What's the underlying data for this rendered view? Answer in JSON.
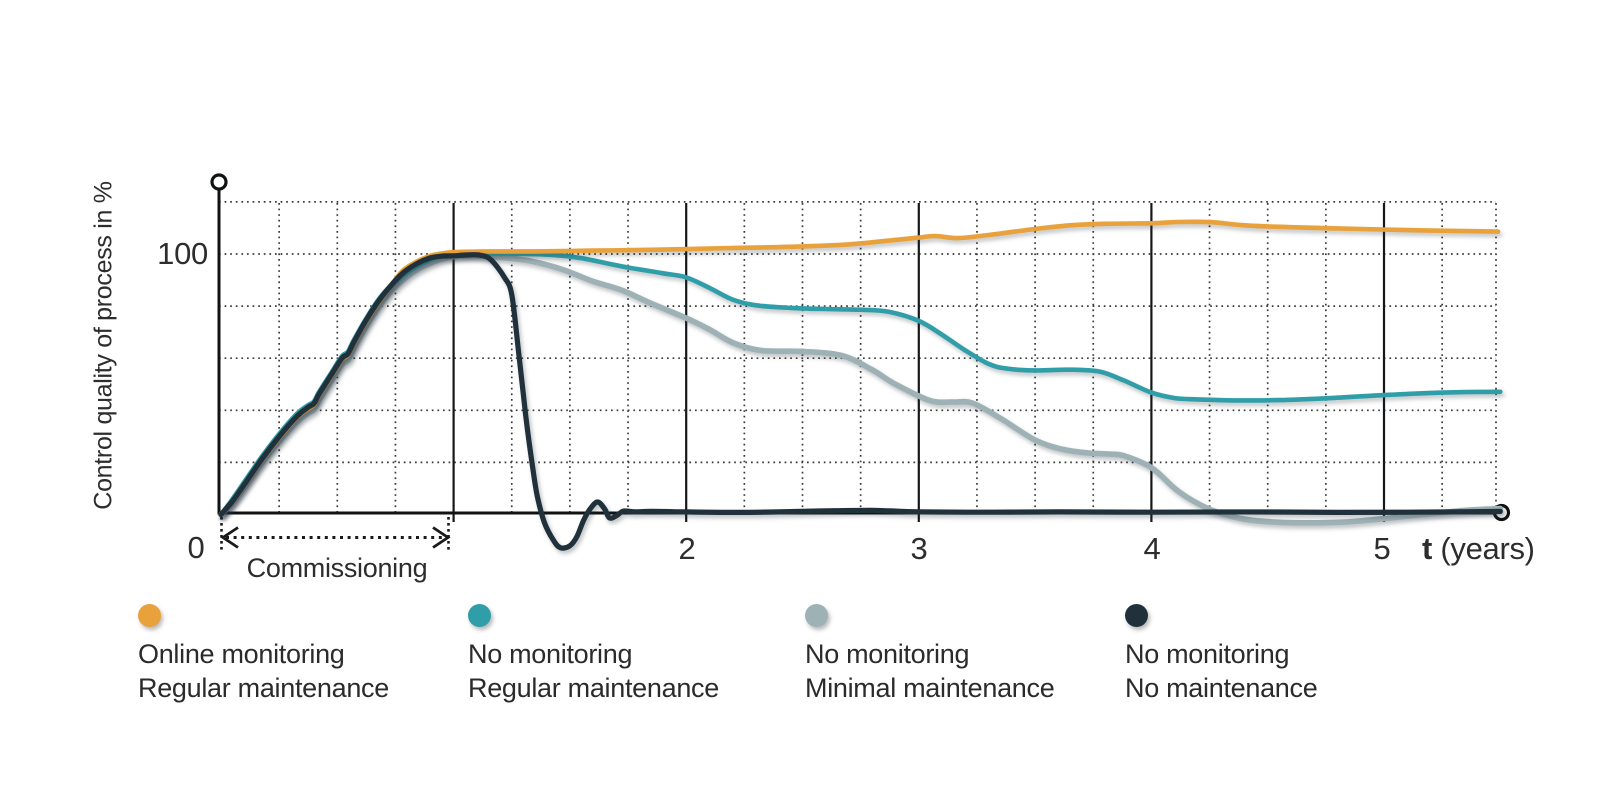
{
  "axes": {
    "y_title": "Control quality of process in %",
    "y_tick_100": "100",
    "x_tick_0": "0",
    "x_tick_2": "2",
    "x_tick_3": "3",
    "x_tick_4": "4",
    "x_tick_5": "5",
    "x_axis_var": "t",
    "x_axis_unit": "(years)"
  },
  "annotation": {
    "commissioning": "Commissioning"
  },
  "colors": {
    "orange": "#E8A13B",
    "teal": "#2F9EA9",
    "gray": "#9EB2B5",
    "dark": "#20313B",
    "axis": "#101214",
    "grid_dots": "#3A3A3A",
    "text": "#2D2D2D"
  },
  "legend": {
    "items": [
      {
        "id": "online-monitoring-regular-maintenance",
        "color": "#E8A13B",
        "line1": "Online monitoring",
        "line2": "Regular maintenance"
      },
      {
        "id": "no-monitoring-regular-maintenance",
        "color": "#2F9EA9",
        "line1": "No monitoring",
        "line2": "Regular maintenance"
      },
      {
        "id": "no-monitoring-minimal-maintenance",
        "color": "#9EB2B5",
        "line1": "No monitoring",
        "line2": "Minimal maintenance"
      },
      {
        "id": "no-monitoring-no-maintenance",
        "color": "#20313B",
        "line1": "No monitoring",
        "line2": "No maintenance"
      }
    ]
  },
  "chart_data": {
    "type": "line",
    "title": "",
    "xlabel": "t (years)",
    "ylabel": "Control quality of process in %",
    "xlim": [
      0,
      5.5
    ],
    "ylim": [
      -15,
      120
    ],
    "y_grid_step": 20,
    "y_grid_max": 120,
    "x_minor_step": 0.25,
    "x_solid_lines": [
      1,
      2,
      3,
      4,
      5
    ],
    "x_labeled_ticks": [
      0,
      2,
      3,
      4,
      5
    ],
    "y_labeled_ticks": [
      100
    ],
    "grid": "dotted",
    "legend_position": "bottom",
    "annotation_range": {
      "label": "Commissioning",
      "from_x": 0,
      "to_x": 0.98
    },
    "series": [
      {
        "id": "no-monitoring-minimal-maintenance",
        "name": "No monitoring / Minimal maintenance",
        "color": "#9EB2B5",
        "width": 5.6,
        "points": [
          [
            0,
            0
          ],
          [
            0.05,
            4.5
          ],
          [
            0.11,
            11.5
          ],
          [
            0.18,
            20.3
          ],
          [
            0.26,
            29
          ],
          [
            0.33,
            35.8
          ],
          [
            0.375,
            38.8
          ],
          [
            0.4,
            40.2
          ],
          [
            0.42,
            43.6
          ],
          [
            0.47,
            50.6
          ],
          [
            0.52,
            57.6
          ],
          [
            0.545,
            59
          ],
          [
            0.57,
            63.6
          ],
          [
            0.62,
            71.5
          ],
          [
            0.67,
            78.5
          ],
          [
            0.72,
            84.6
          ],
          [
            0.78,
            89.8
          ],
          [
            0.84,
            93.8
          ],
          [
            0.9,
            96.4
          ],
          [
            0.95,
            98
          ],
          [
            1,
            99
          ],
          [
            1.08,
            99.3
          ],
          [
            1.2,
            98.7
          ],
          [
            1.33,
            97.3
          ],
          [
            1.47,
            94
          ],
          [
            1.6,
            89.5
          ],
          [
            1.72,
            86.2
          ],
          [
            1.85,
            81
          ],
          [
            2,
            75.4
          ],
          [
            2.1,
            71
          ],
          [
            2.2,
            66
          ],
          [
            2.32,
            63
          ],
          [
            2.5,
            62.6
          ],
          [
            2.67,
            61
          ],
          [
            2.8,
            55.5
          ],
          [
            2.9,
            50
          ],
          [
            3.05,
            43.7
          ],
          [
            3.15,
            43.2
          ],
          [
            3.23,
            42.8
          ],
          [
            3.35,
            37
          ],
          [
            3.5,
            28.6
          ],
          [
            3.62,
            25
          ],
          [
            3.73,
            23.6
          ],
          [
            3.82,
            23.2
          ],
          [
            3.88,
            22.6
          ],
          [
            4,
            18
          ],
          [
            4.1,
            10
          ],
          [
            4.18,
            5.2
          ],
          [
            4.28,
            1
          ],
          [
            4.4,
            -1.8
          ],
          [
            4.55,
            -3
          ],
          [
            4.7,
            -3.2
          ],
          [
            4.85,
            -2.8
          ],
          [
            5,
            -1.6
          ],
          [
            5.2,
            0.3
          ],
          [
            5.35,
            1.6
          ],
          [
            5.5,
            2.3
          ]
        ]
      },
      {
        "id": "no-monitoring-regular-maintenance",
        "name": "No monitoring / Regular maintenance",
        "color": "#2F9EA9",
        "width": 4.6,
        "points": [
          [
            0,
            0
          ],
          [
            0.05,
            6
          ],
          [
            0.11,
            13.8
          ],
          [
            0.18,
            22.8
          ],
          [
            0.26,
            32
          ],
          [
            0.33,
            39
          ],
          [
            0.375,
            42
          ],
          [
            0.4,
            43.4
          ],
          [
            0.42,
            46.8
          ],
          [
            0.47,
            53.8
          ],
          [
            0.52,
            60.8
          ],
          [
            0.545,
            62.4
          ],
          [
            0.57,
            66.8
          ],
          [
            0.62,
            74.6
          ],
          [
            0.67,
            81.6
          ],
          [
            0.72,
            87
          ],
          [
            0.78,
            91.5
          ],
          [
            0.84,
            95.2
          ],
          [
            0.9,
            97.8
          ],
          [
            0.95,
            99.2
          ],
          [
            1,
            99.8
          ],
          [
            1.1,
            100
          ],
          [
            1.25,
            100.1
          ],
          [
            1.42,
            99.7
          ],
          [
            1.55,
            98.4
          ],
          [
            1.72,
            95.3
          ],
          [
            1.9,
            92.6
          ],
          [
            2,
            91
          ],
          [
            2.1,
            87
          ],
          [
            2.2,
            82.5
          ],
          [
            2.3,
            80.3
          ],
          [
            2.45,
            79.3
          ],
          [
            2.6,
            78.9
          ],
          [
            2.75,
            78.6
          ],
          [
            2.87,
            77.8
          ],
          [
            3,
            74.3
          ],
          [
            3.1,
            69
          ],
          [
            3.2,
            63
          ],
          [
            3.3,
            57.8
          ],
          [
            3.38,
            56
          ],
          [
            3.5,
            55.3
          ],
          [
            3.65,
            55.6
          ],
          [
            3.78,
            54.8
          ],
          [
            3.88,
            51.5
          ],
          [
            4,
            46.8
          ],
          [
            4.1,
            44.7
          ],
          [
            4.2,
            44.2
          ],
          [
            4.35,
            43.8
          ],
          [
            4.55,
            43.9
          ],
          [
            4.75,
            44.6
          ],
          [
            4.95,
            45.6
          ],
          [
            5.15,
            46.5
          ],
          [
            5.35,
            47
          ],
          [
            5.5,
            47.1
          ]
        ]
      },
      {
        "id": "online-monitoring-regular-maintenance",
        "name": "Online monitoring / Regular maintenance",
        "color": "#E8A13B",
        "width": 4.6,
        "points": [
          [
            0,
            0
          ],
          [
            0.05,
            5
          ],
          [
            0.11,
            12.5
          ],
          [
            0.18,
            21.5
          ],
          [
            0.26,
            30.5
          ],
          [
            0.33,
            37.5
          ],
          [
            0.375,
            40.5
          ],
          [
            0.4,
            42
          ],
          [
            0.42,
            45.5
          ],
          [
            0.47,
            52.5
          ],
          [
            0.52,
            59.5
          ],
          [
            0.545,
            61
          ],
          [
            0.57,
            65.5
          ],
          [
            0.62,
            73.5
          ],
          [
            0.67,
            80.5
          ],
          [
            0.72,
            86.5
          ],
          [
            0.78,
            93.5
          ],
          [
            0.84,
            97
          ],
          [
            0.9,
            99.3
          ],
          [
            0.95,
            100.2
          ],
          [
            1,
            100.7
          ],
          [
            1.15,
            101
          ],
          [
            1.35,
            101
          ],
          [
            1.6,
            101.3
          ],
          [
            1.85,
            101.6
          ],
          [
            2,
            101.9
          ],
          [
            2.2,
            102.3
          ],
          [
            2.5,
            102.9
          ],
          [
            2.7,
            103.7
          ],
          [
            2.9,
            105.4
          ],
          [
            3,
            106.3
          ],
          [
            3.07,
            106.9
          ],
          [
            3.17,
            106.1
          ],
          [
            3.3,
            107.3
          ],
          [
            3.5,
            109.6
          ],
          [
            3.65,
            111
          ],
          [
            3.8,
            111.6
          ],
          [
            4,
            111.8
          ],
          [
            4.12,
            112.3
          ],
          [
            4.26,
            112.2
          ],
          [
            4.4,
            111
          ],
          [
            4.6,
            110.3
          ],
          [
            4.9,
            109.6
          ],
          [
            5.2,
            109
          ],
          [
            5.49,
            108.6
          ]
        ]
      },
      {
        "id": "no-monitoring-no-maintenance",
        "name": "No monitoring / No maintenance",
        "color": "#20313B",
        "width": 5.2,
        "points": [
          [
            0,
            0
          ],
          [
            0.05,
            5.2
          ],
          [
            0.11,
            12.8
          ],
          [
            0.18,
            21.8
          ],
          [
            0.26,
            31
          ],
          [
            0.33,
            38
          ],
          [
            0.375,
            41.2
          ],
          [
            0.4,
            42.6
          ],
          [
            0.42,
            46
          ],
          [
            0.47,
            53
          ],
          [
            0.52,
            60
          ],
          [
            0.545,
            61.6
          ],
          [
            0.57,
            66
          ],
          [
            0.62,
            74
          ],
          [
            0.67,
            81
          ],
          [
            0.72,
            86.8
          ],
          [
            0.78,
            92.5
          ],
          [
            0.84,
            96.2
          ],
          [
            0.9,
            98.5
          ],
          [
            0.95,
            99.2
          ],
          [
            1,
            99.3
          ],
          [
            1.05,
            99.6
          ],
          [
            1.11,
            99.6
          ],
          [
            1.16,
            97.8
          ],
          [
            1.22,
            90.8
          ],
          [
            1.25,
            84.3
          ],
          [
            1.28,
            62
          ],
          [
            1.31,
            38
          ],
          [
            1.34,
            18
          ],
          [
            1.36,
            7
          ],
          [
            1.39,
            -3
          ],
          [
            1.43,
            -10
          ],
          [
            1.46,
            -12.8
          ],
          [
            1.5,
            -12
          ],
          [
            1.53,
            -8.5
          ],
          [
            1.56,
            -2
          ],
          [
            1.59,
            2.5
          ],
          [
            1.62,
            4.8
          ],
          [
            1.65,
            2
          ],
          [
            1.67,
            -1.3
          ],
          [
            1.7,
            -0.5
          ],
          [
            1.73,
            1.3
          ],
          [
            1.78,
            1
          ],
          [
            1.85,
            1.2
          ],
          [
            2,
            1
          ],
          [
            2.2,
            0.8
          ],
          [
            2.4,
            1
          ],
          [
            2.6,
            1.4
          ],
          [
            2.8,
            1.6
          ],
          [
            3,
            1
          ],
          [
            3.3,
            0.9
          ],
          [
            3.6,
            1
          ],
          [
            4,
            0.9
          ],
          [
            4.4,
            1
          ],
          [
            4.8,
            0.8
          ],
          [
            5.1,
            0.9
          ],
          [
            5.3,
            1
          ],
          [
            5.5,
            1.2
          ]
        ]
      }
    ]
  }
}
